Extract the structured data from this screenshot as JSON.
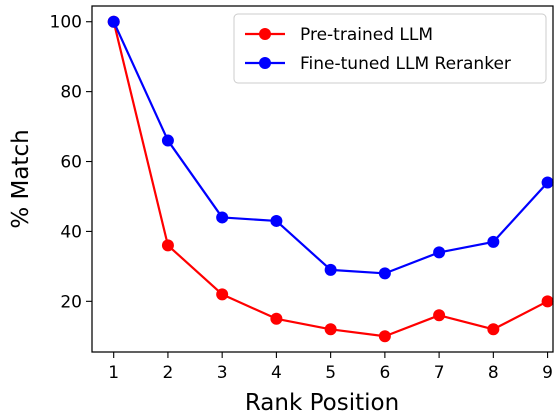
{
  "chart_data": {
    "type": "line",
    "xlabel": "Rank Position",
    "ylabel": "% Match",
    "x": [
      1,
      2,
      3,
      4,
      5,
      6,
      7,
      8,
      9
    ],
    "xticks": [
      "1",
      "2",
      "3",
      "4",
      "5",
      "6",
      "7",
      "8",
      "9"
    ],
    "yticks": [
      "20",
      "40",
      "60",
      "80",
      "100"
    ],
    "xlim": [
      0.6,
      9.1
    ],
    "ylim": [
      5.5,
      104.5
    ],
    "grid": false,
    "legend_position": "top-right",
    "series": [
      {
        "name": "Pre-trained LLM",
        "color": "#ff0000",
        "marker": "circle",
        "values": [
          100,
          36,
          22,
          15,
          12,
          10,
          16,
          12,
          20
        ]
      },
      {
        "name": "Fine-tuned LLM Reranker",
        "color": "#0000ff",
        "marker": "circle",
        "values": [
          100,
          66,
          44,
          43,
          29,
          28,
          34,
          37,
          54
        ]
      }
    ]
  }
}
